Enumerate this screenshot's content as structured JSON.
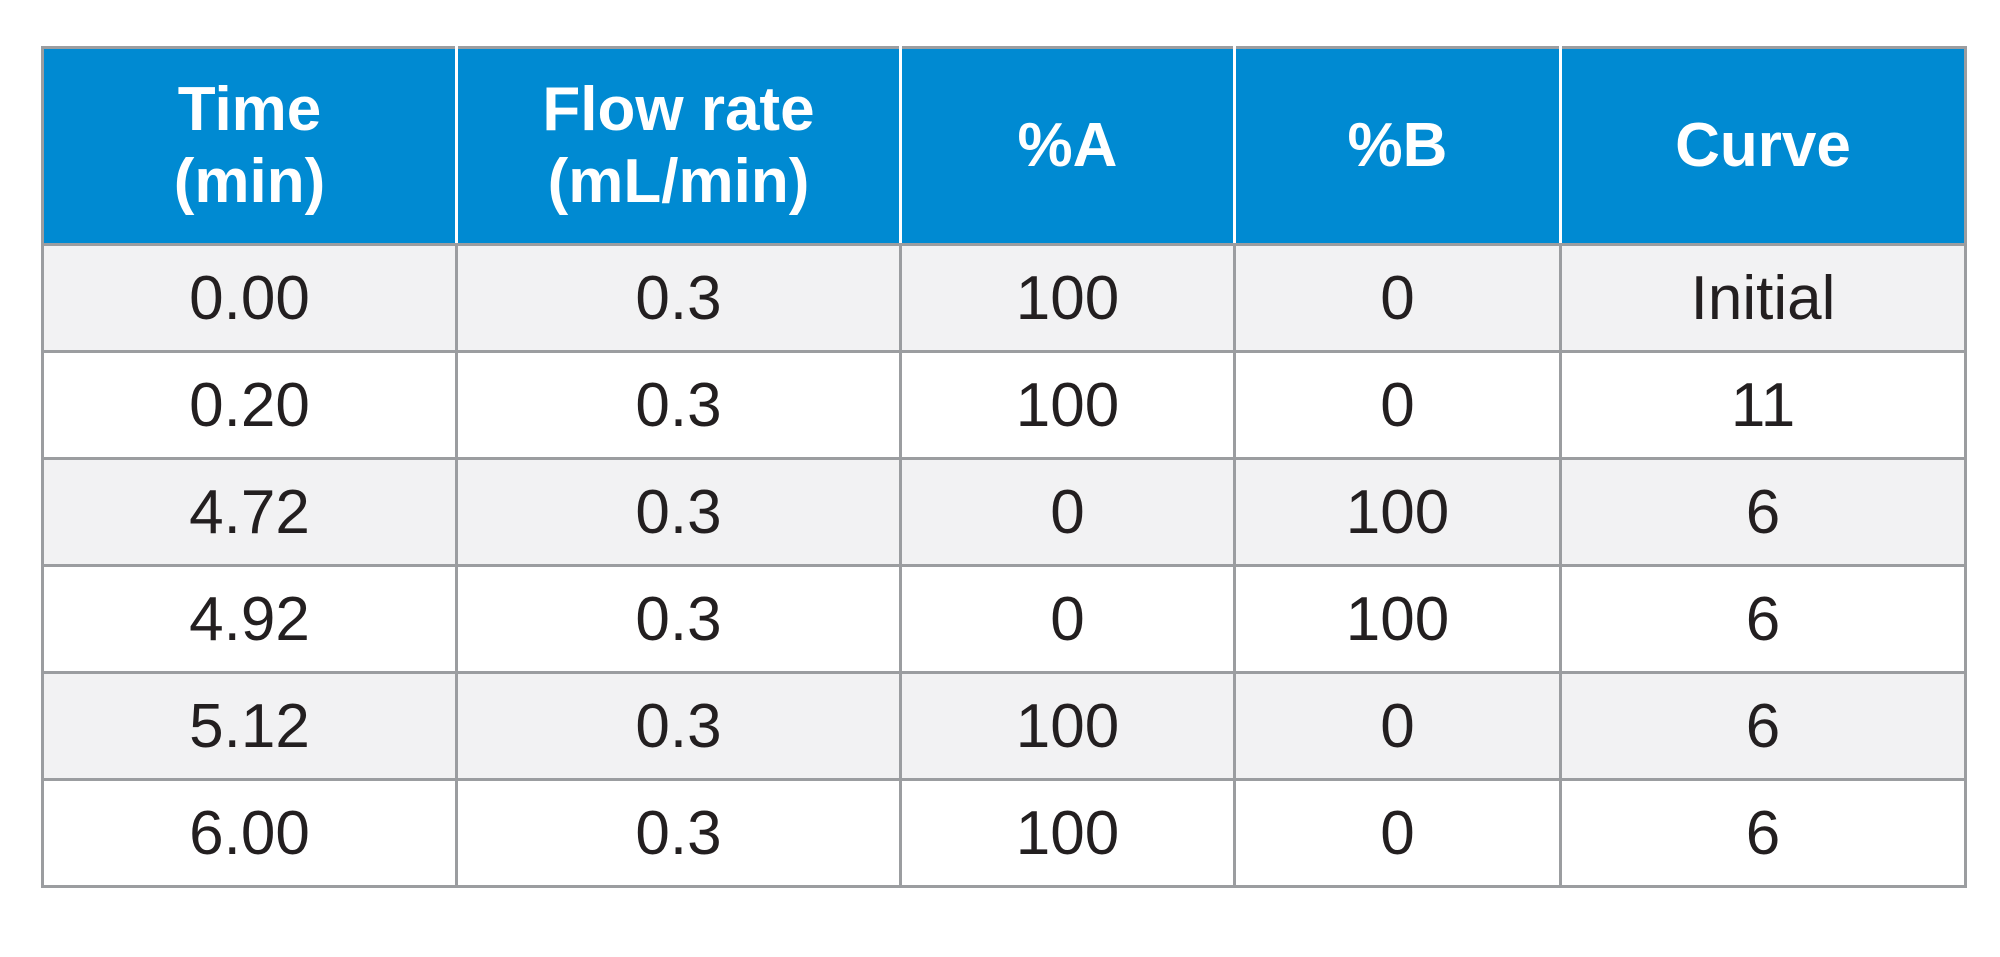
{
  "table": {
    "headers": [
      {
        "line1": "Time",
        "line2": "(min)"
      },
      {
        "line1": "Flow rate",
        "line2": "(mL/min)"
      },
      {
        "line1": "%A",
        "line2": ""
      },
      {
        "line1": "%B",
        "line2": ""
      },
      {
        "line1": "Curve",
        "line2": ""
      }
    ],
    "rows": [
      [
        "0.00",
        "0.3",
        "100",
        "0",
        "Initial"
      ],
      [
        "0.20",
        "0.3",
        "100",
        "0",
        "11"
      ],
      [
        "4.72",
        "0.3",
        "0",
        "100",
        "6"
      ],
      [
        "4.92",
        "0.3",
        "0",
        "100",
        "6"
      ],
      [
        "5.12",
        "0.3",
        "100",
        "0",
        "6"
      ],
      [
        "6.00",
        "0.3",
        "100",
        "0",
        "6"
      ]
    ]
  },
  "colors": {
    "header_bg": "#008ad2",
    "header_text": "#ffffff",
    "row_alt_bg": "#f2f2f3",
    "row_bg": "#ffffff",
    "border": "#9b9da0",
    "cell_text": "#231f20"
  }
}
